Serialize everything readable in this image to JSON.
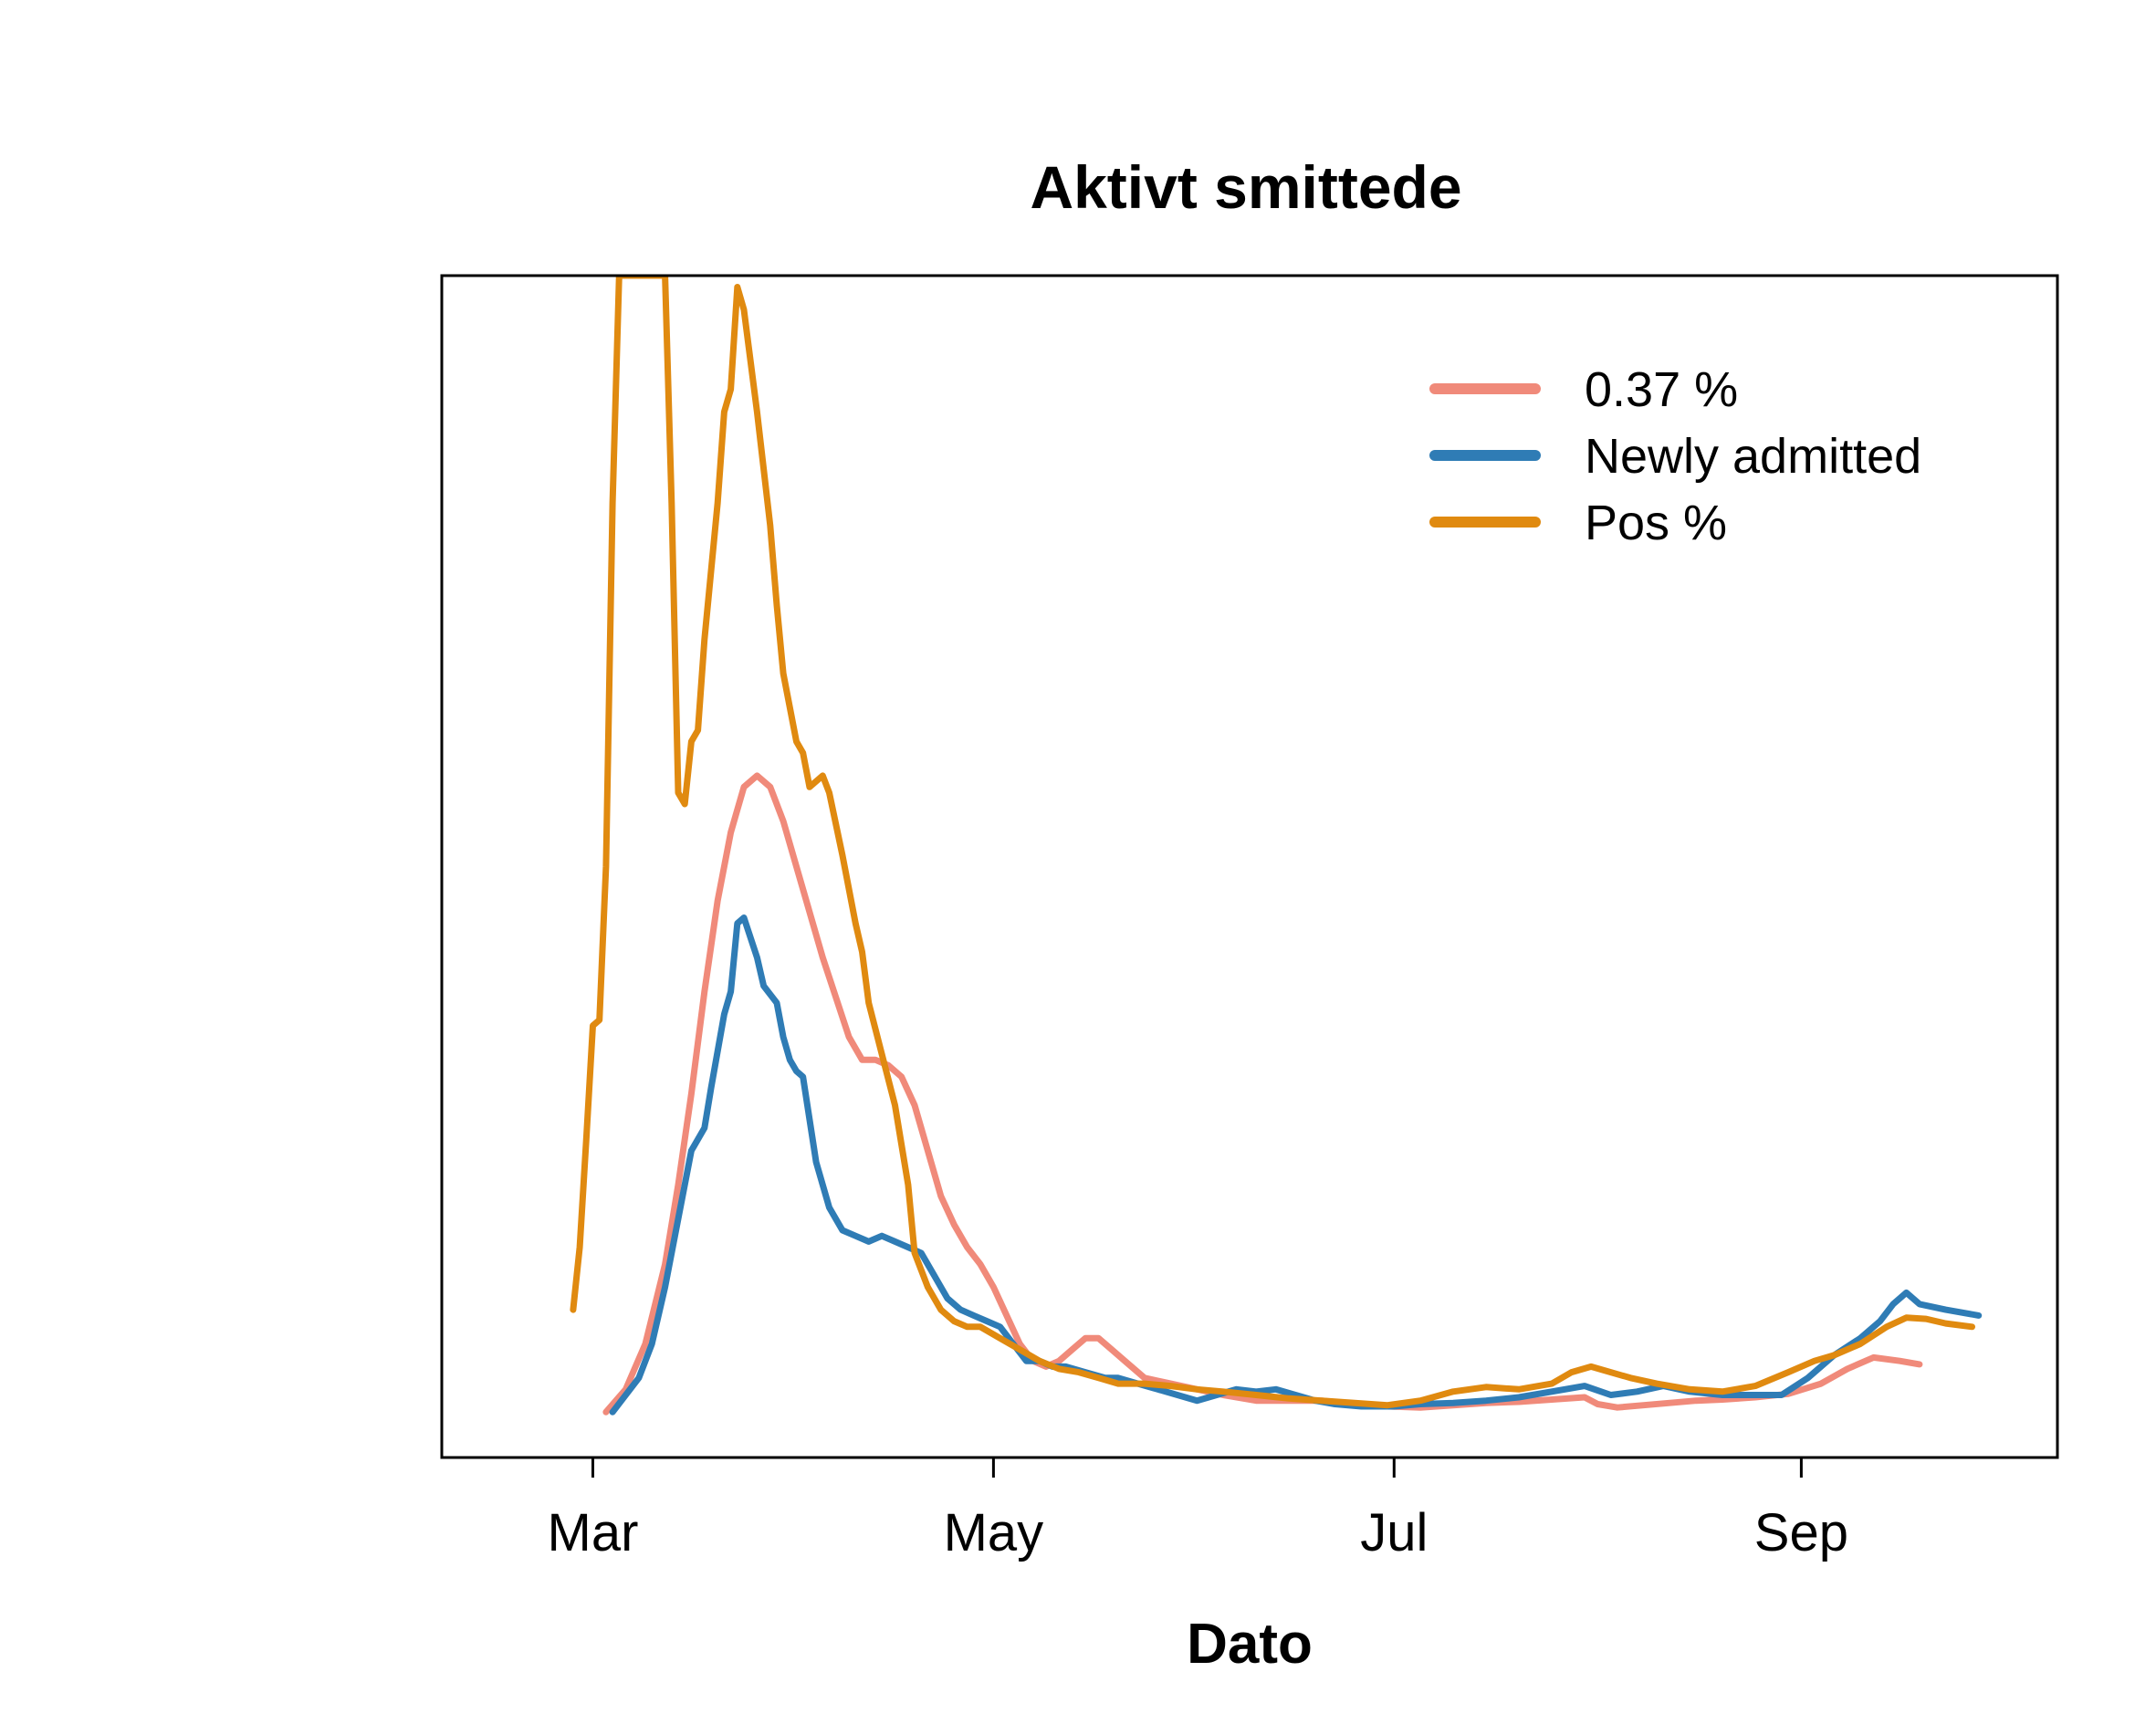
{
  "chart_data": {
    "type": "line",
    "title": "Aktivt smittede",
    "xlabel": "Dato",
    "ylabel": "",
    "x_ticks": [
      {
        "date": "2020-03-01",
        "label": "Mar"
      },
      {
        "date": "2020-05-01",
        "label": "May"
      },
      {
        "date": "2020-07-01",
        "label": "Jul"
      },
      {
        "date": "2020-09-01",
        "label": "Sep"
      }
    ],
    "xlim": [
      "2020-02-07",
      "2020-10-10"
    ],
    "ylim": [
      -4,
      100
    ],
    "y_axis_shown": false,
    "grid": false,
    "legend_position": "top-right",
    "series": [
      {
        "name": "0.37 %",
        "color": "#F08A7A",
        "points": [
          [
            "2020-03-03",
            0
          ],
          [
            "2020-03-06",
            2
          ],
          [
            "2020-03-09",
            6
          ],
          [
            "2020-03-12",
            13
          ],
          [
            "2020-03-14",
            20
          ],
          [
            "2020-03-16",
            28
          ],
          [
            "2020-03-18",
            37
          ],
          [
            "2020-03-20",
            45
          ],
          [
            "2020-03-22",
            51
          ],
          [
            "2020-03-24",
            55
          ],
          [
            "2020-03-26",
            56
          ],
          [
            "2020-03-28",
            55
          ],
          [
            "2020-03-30",
            52
          ],
          [
            "2020-04-01",
            48
          ],
          [
            "2020-04-03",
            44
          ],
          [
            "2020-04-05",
            40
          ],
          [
            "2020-04-07",
            36.5
          ],
          [
            "2020-04-09",
            33
          ],
          [
            "2020-04-11",
            31
          ],
          [
            "2020-04-13",
            31
          ],
          [
            "2020-04-15",
            30.5
          ],
          [
            "2020-04-17",
            29.5
          ],
          [
            "2020-04-19",
            27
          ],
          [
            "2020-04-21",
            23
          ],
          [
            "2020-04-23",
            19
          ],
          [
            "2020-04-25",
            16.5
          ],
          [
            "2020-04-27",
            14.5
          ],
          [
            "2020-04-29",
            13
          ],
          [
            "2020-05-01",
            11
          ],
          [
            "2020-05-03",
            8.5
          ],
          [
            "2020-05-05",
            6
          ],
          [
            "2020-05-07",
            4.5
          ],
          [
            "2020-05-09",
            4
          ],
          [
            "2020-05-11",
            4.5
          ],
          [
            "2020-05-13",
            5.5
          ],
          [
            "2020-05-15",
            6.5
          ],
          [
            "2020-05-17",
            6.5
          ],
          [
            "2020-05-19",
            5.5
          ],
          [
            "2020-05-21",
            4.5
          ],
          [
            "2020-05-24",
            3
          ],
          [
            "2020-05-28",
            2.5
          ],
          [
            "2020-06-01",
            2
          ],
          [
            "2020-06-05",
            1.5
          ],
          [
            "2020-06-10",
            1
          ],
          [
            "2020-06-15",
            1
          ],
          [
            "2020-06-20",
            1
          ],
          [
            "2020-06-25",
            0.7
          ],
          [
            "2020-06-30",
            0.5
          ],
          [
            "2020-07-05",
            0.4
          ],
          [
            "2020-07-10",
            0.6
          ],
          [
            "2020-07-15",
            0.8
          ],
          [
            "2020-07-20",
            0.9
          ],
          [
            "2020-07-25",
            1.1
          ],
          [
            "2020-07-30",
            1.3
          ],
          [
            "2020-08-01",
            0.7
          ],
          [
            "2020-08-04",
            0.4
          ],
          [
            "2020-08-08",
            0.6
          ],
          [
            "2020-08-12",
            0.8
          ],
          [
            "2020-08-16",
            1
          ],
          [
            "2020-08-20",
            1.1
          ],
          [
            "2020-08-25",
            1.3
          ],
          [
            "2020-08-30",
            1.6
          ],
          [
            "2020-09-04",
            2.5
          ],
          [
            "2020-09-08",
            3.8
          ],
          [
            "2020-09-12",
            4.8
          ],
          [
            "2020-09-16",
            4.5
          ],
          [
            "2020-09-19",
            4.2
          ]
        ]
      },
      {
        "name": "Newly admitted",
        "color": "#2F7CB5",
        "points": [
          [
            "2020-03-04",
            0
          ],
          [
            "2020-03-06",
            1.5
          ],
          [
            "2020-03-08",
            3
          ],
          [
            "2020-03-10",
            6
          ],
          [
            "2020-03-12",
            11
          ],
          [
            "2020-03-14",
            17
          ],
          [
            "2020-03-16",
            23
          ],
          [
            "2020-03-18",
            25
          ],
          [
            "2020-03-19",
            28.5
          ],
          [
            "2020-03-21",
            35
          ],
          [
            "2020-03-22",
            37
          ],
          [
            "2020-03-23",
            43
          ],
          [
            "2020-03-24",
            43.5
          ],
          [
            "2020-03-26",
            40
          ],
          [
            "2020-03-27",
            37.5
          ],
          [
            "2020-03-29",
            36
          ],
          [
            "2020-03-30",
            33
          ],
          [
            "2020-03-31",
            31
          ],
          [
            "2020-04-01",
            30
          ],
          [
            "2020-04-02",
            29.5
          ],
          [
            "2020-04-04",
            22
          ],
          [
            "2020-04-06",
            18
          ],
          [
            "2020-04-08",
            16
          ],
          [
            "2020-04-10",
            15.5
          ],
          [
            "2020-04-12",
            15
          ],
          [
            "2020-04-14",
            15.5
          ],
          [
            "2020-04-16",
            15
          ],
          [
            "2020-04-18",
            14.5
          ],
          [
            "2020-04-20",
            14
          ],
          [
            "2020-04-22",
            12
          ],
          [
            "2020-04-24",
            10
          ],
          [
            "2020-04-26",
            9
          ],
          [
            "2020-04-28",
            8.5
          ],
          [
            "2020-04-30",
            8
          ],
          [
            "2020-05-02",
            7.5
          ],
          [
            "2020-05-04",
            6
          ],
          [
            "2020-05-06",
            4.5
          ],
          [
            "2020-05-08",
            4.5
          ],
          [
            "2020-05-10",
            4
          ],
          [
            "2020-05-12",
            4
          ],
          [
            "2020-05-15",
            3.5
          ],
          [
            "2020-05-18",
            3
          ],
          [
            "2020-05-20",
            3
          ],
          [
            "2020-05-23",
            2.5
          ],
          [
            "2020-05-26",
            2
          ],
          [
            "2020-05-29",
            1.5
          ],
          [
            "2020-06-01",
            1
          ],
          [
            "2020-06-04",
            1.5
          ],
          [
            "2020-06-07",
            2
          ],
          [
            "2020-06-10",
            1.8
          ],
          [
            "2020-06-13",
            2
          ],
          [
            "2020-06-16",
            1.5
          ],
          [
            "2020-06-19",
            1
          ],
          [
            "2020-06-22",
            0.7
          ],
          [
            "2020-06-26",
            0.5
          ],
          [
            "2020-07-01",
            0.5
          ],
          [
            "2020-07-05",
            0.7
          ],
          [
            "2020-07-10",
            0.8
          ],
          [
            "2020-07-15",
            1
          ],
          [
            "2020-07-20",
            1.3
          ],
          [
            "2020-07-25",
            1.8
          ],
          [
            "2020-07-30",
            2.3
          ],
          [
            "2020-08-03",
            1.5
          ],
          [
            "2020-08-07",
            1.8
          ],
          [
            "2020-08-11",
            2.3
          ],
          [
            "2020-08-15",
            1.8
          ],
          [
            "2020-08-20",
            1.5
          ],
          [
            "2020-08-25",
            1.5
          ],
          [
            "2020-08-29",
            1.5
          ],
          [
            "2020-09-02",
            3
          ],
          [
            "2020-09-06",
            5
          ],
          [
            "2020-09-10",
            6.5
          ],
          [
            "2020-09-13",
            8
          ],
          [
            "2020-09-15",
            9.5
          ],
          [
            "2020-09-17",
            10.5
          ],
          [
            "2020-09-19",
            9.5
          ],
          [
            "2020-09-23",
            9
          ],
          [
            "2020-09-28",
            8.5
          ]
        ]
      },
      {
        "name": "Pos %",
        "color": "#E08A10",
        "points": [
          [
            "2020-02-27",
            9
          ],
          [
            "2020-02-28",
            14.5
          ],
          [
            "2020-02-29",
            24
          ],
          [
            "2020-03-01",
            34
          ],
          [
            "2020-03-02",
            34.5
          ],
          [
            "2020-03-03",
            48
          ],
          [
            "2020-03-04",
            80
          ],
          [
            "2020-03-05",
            100
          ],
          [
            "2020-03-12",
            100
          ],
          [
            "2020-03-13",
            80
          ],
          [
            "2020-03-14",
            54.5
          ],
          [
            "2020-03-15",
            53.5
          ],
          [
            "2020-03-16",
            59
          ],
          [
            "2020-03-17",
            60
          ],
          [
            "2020-03-18",
            68
          ],
          [
            "2020-03-20",
            80
          ],
          [
            "2020-03-21",
            88
          ],
          [
            "2020-03-22",
            90
          ],
          [
            "2020-03-23",
            99
          ],
          [
            "2020-03-24",
            97
          ],
          [
            "2020-03-26",
            88
          ],
          [
            "2020-03-28",
            78
          ],
          [
            "2020-03-29",
            71
          ],
          [
            "2020-03-30",
            65
          ],
          [
            "2020-04-01",
            59
          ],
          [
            "2020-04-02",
            58
          ],
          [
            "2020-04-03",
            55
          ],
          [
            "2020-04-04",
            55.5
          ],
          [
            "2020-04-05",
            56
          ],
          [
            "2020-04-06",
            54.5
          ],
          [
            "2020-04-08",
            49
          ],
          [
            "2020-04-10",
            43
          ],
          [
            "2020-04-11",
            40.5
          ],
          [
            "2020-04-12",
            36
          ],
          [
            "2020-04-14",
            31.5
          ],
          [
            "2020-04-16",
            27
          ],
          [
            "2020-04-18",
            20
          ],
          [
            "2020-04-19",
            14
          ],
          [
            "2020-04-21",
            11
          ],
          [
            "2020-04-23",
            9
          ],
          [
            "2020-04-25",
            8
          ],
          [
            "2020-04-27",
            7.5
          ],
          [
            "2020-04-29",
            7.5
          ],
          [
            "2020-05-02",
            6.5
          ],
          [
            "2020-05-05",
            5.5
          ],
          [
            "2020-05-08",
            4.5
          ],
          [
            "2020-05-11",
            3.8
          ],
          [
            "2020-05-14",
            3.5
          ],
          [
            "2020-05-17",
            3
          ],
          [
            "2020-05-20",
            2.5
          ],
          [
            "2020-05-24",
            2.5
          ],
          [
            "2020-05-28",
            2.3
          ],
          [
            "2020-06-01",
            2
          ],
          [
            "2020-06-05",
            1.8
          ],
          [
            "2020-06-10",
            1.5
          ],
          [
            "2020-06-15",
            1.2
          ],
          [
            "2020-06-20",
            1
          ],
          [
            "2020-06-25",
            0.8
          ],
          [
            "2020-06-30",
            0.6
          ],
          [
            "2020-07-05",
            1
          ],
          [
            "2020-07-10",
            1.8
          ],
          [
            "2020-07-15",
            2.2
          ],
          [
            "2020-07-20",
            2
          ],
          [
            "2020-07-25",
            2.5
          ],
          [
            "2020-07-28",
            3.5
          ],
          [
            "2020-07-31",
            4
          ],
          [
            "2020-08-03",
            3.5
          ],
          [
            "2020-08-06",
            3
          ],
          [
            "2020-08-10",
            2.5
          ],
          [
            "2020-08-15",
            2
          ],
          [
            "2020-08-20",
            1.8
          ],
          [
            "2020-08-25",
            2.3
          ],
          [
            "2020-08-30",
            3.5
          ],
          [
            "2020-09-03",
            4.5
          ],
          [
            "2020-09-06",
            5
          ],
          [
            "2020-09-10",
            6
          ],
          [
            "2020-09-14",
            7.5
          ],
          [
            "2020-09-17",
            8.3
          ],
          [
            "2020-09-20",
            8.2
          ],
          [
            "2020-09-23",
            7.8
          ],
          [
            "2020-09-27",
            7.5
          ]
        ]
      }
    ]
  }
}
